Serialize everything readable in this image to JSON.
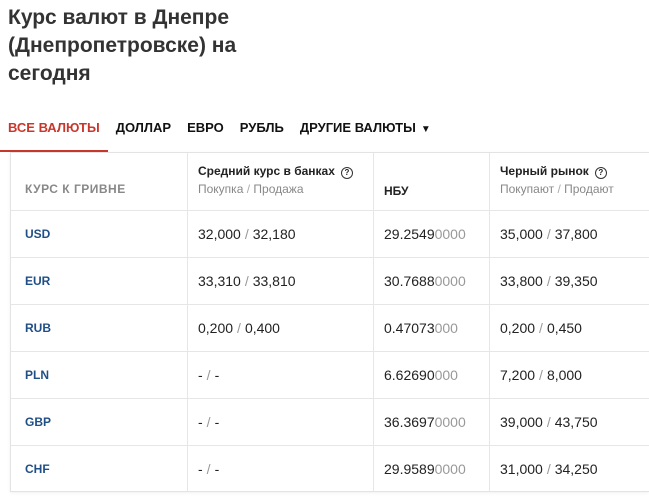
{
  "title": {
    "line1": "Курс валют в Днепре",
    "line2": "(Днепропетровске) на",
    "line3": "сегодня"
  },
  "tabs": [
    {
      "label": "ВСЕ ВАЛЮТЫ",
      "active": true
    },
    {
      "label": "ДОЛЛАР"
    },
    {
      "label": "ЕВРО"
    },
    {
      "label": "РУБЛЬ"
    },
    {
      "label": "ДРУГИЕ ВАЛЮТЫ",
      "caret": "▼"
    }
  ],
  "table": {
    "col1": "КУРС К ГРИВНЕ",
    "col2": {
      "title": "Средний курс в банках",
      "sub_buy": "Покупка",
      "sub_sep": "/",
      "sub_sell": "Продажа"
    },
    "col3": {
      "title": "НБУ"
    },
    "col4": {
      "title": "Черный рынок",
      "sub_buy": "Покупают",
      "sub_sep": "/",
      "sub_sell": "Продают"
    },
    "help_glyph": "?",
    "rows": [
      {
        "code": "USD",
        "bank_buy": "32,000",
        "bank_sell": "32,180",
        "nbu_main": "29.2549",
        "nbu_tail": "0000",
        "black_buy": "35,000",
        "black_sell": "37,800"
      },
      {
        "code": "EUR",
        "bank_buy": "33,310",
        "bank_sell": "33,810",
        "nbu_main": "30.7688",
        "nbu_tail": "0000",
        "black_buy": "33,800",
        "black_sell": "39,350"
      },
      {
        "code": "RUB",
        "bank_buy": "0,200",
        "bank_sell": "0,400",
        "nbu_main": "0.47073",
        "nbu_tail": "000",
        "black_buy": "0,200",
        "black_sell": "0,450"
      },
      {
        "code": "PLN",
        "bank_buy": "-",
        "bank_sell": "-",
        "nbu_main": "6.62690",
        "nbu_tail": "000",
        "black_buy": "7,200",
        "black_sell": "8,000"
      },
      {
        "code": "GBP",
        "bank_buy": "-",
        "bank_sell": "-",
        "nbu_main": "36.3697",
        "nbu_tail": "0000",
        "black_buy": "39,000",
        "black_sell": "43,750"
      },
      {
        "code": "CHF",
        "bank_buy": "-",
        "bank_sell": "-",
        "nbu_main": "29.9589",
        "nbu_tail": "0000",
        "black_buy": "31,000",
        "black_sell": "34,250"
      }
    ]
  },
  "colors": {
    "accent": "#c8372c",
    "code": "#1f4f86",
    "muted": "#888888"
  }
}
